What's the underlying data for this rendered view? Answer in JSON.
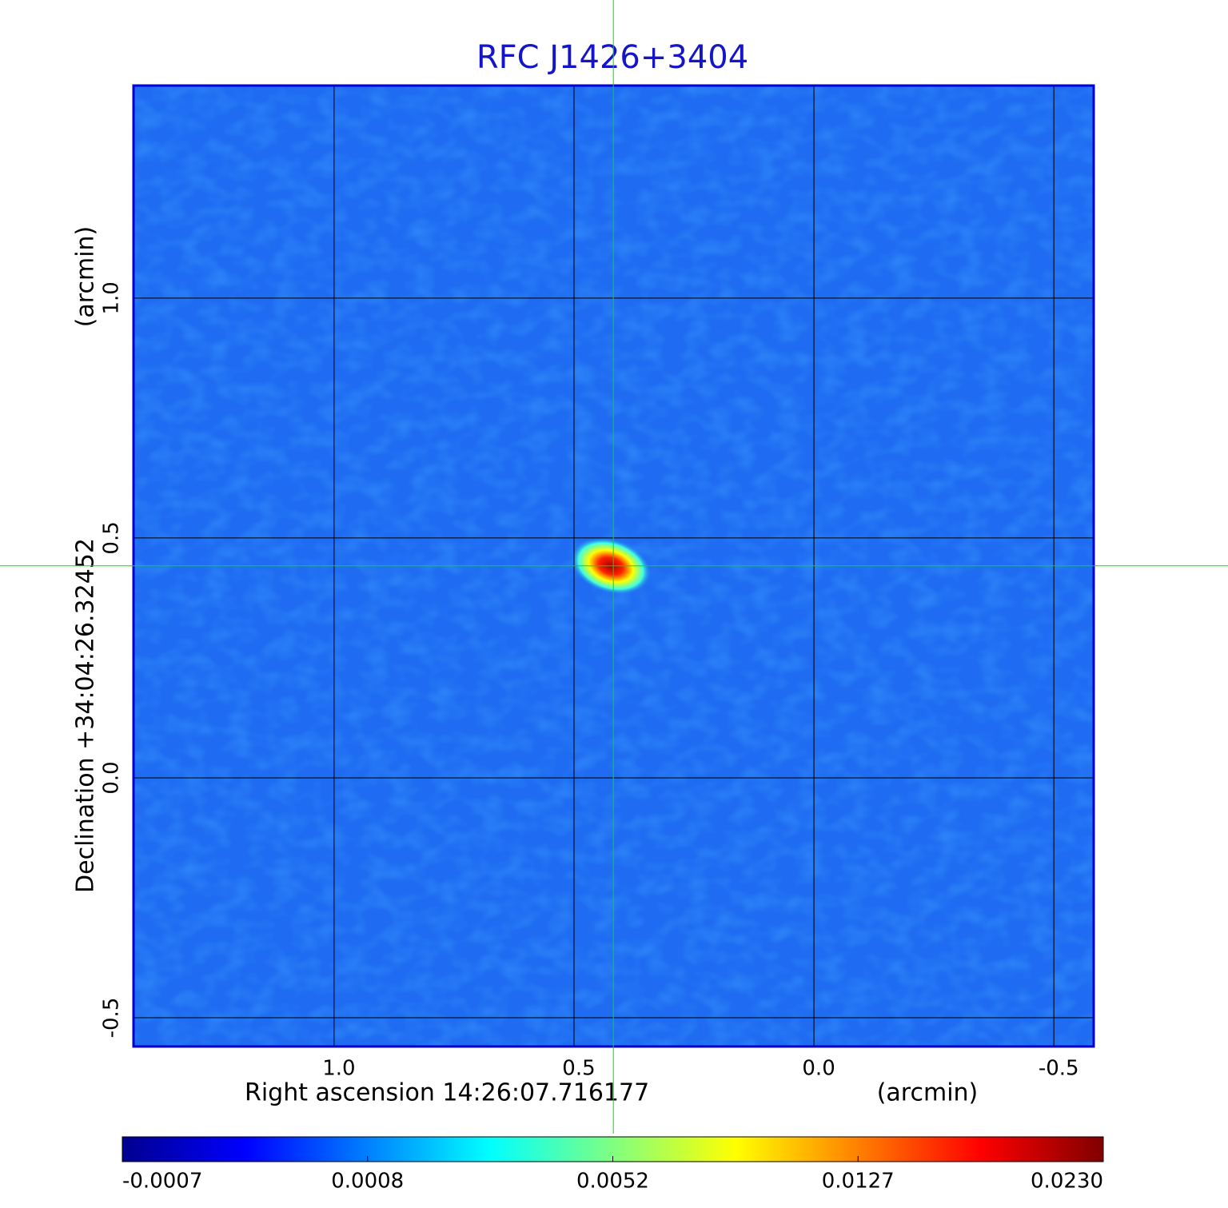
{
  "chart_data": {
    "type": "image",
    "title": "RFC J1426+3404",
    "x_label": "Right ascension  14:26:07.716177",
    "x_unit": "(arcmin)",
    "y_label": "Declination  +34:04:26.32452",
    "y_unit": "(arcmin)",
    "xlim": [
      1.418,
      -0.583
    ],
    "ylim": [
      -0.56,
      1.443
    ],
    "xticks": [
      {
        "value": 1,
        "label": "1.0"
      },
      0.5,
      {
        "value": 0,
        "label": "0.0"
      },
      -0.5
    ],
    "yticks": [
      {
        "value": -0.5,
        "label": "-0.5"
      },
      {
        "value": 0,
        "label": "0.0"
      },
      0.5,
      {
        "value": 1,
        "label": "1.0"
      }
    ],
    "grid": true,
    "crosshair": {
      "x": 0.418,
      "y": 0.442,
      "color": "#00e000"
    },
    "colorbar": {
      "ticks": [
        -0.0007,
        0.0008,
        0.0052,
        0.0127,
        {
          "value": 0.023,
          "label": "0.0230"
        }
      ],
      "colors": [
        "#00008f",
        "#0000ff",
        "#0080ff",
        "#00ffff",
        "#80ff80",
        "#ffff00",
        "#ff8000",
        "#ff0000",
        "#800000"
      ]
    }
  }
}
